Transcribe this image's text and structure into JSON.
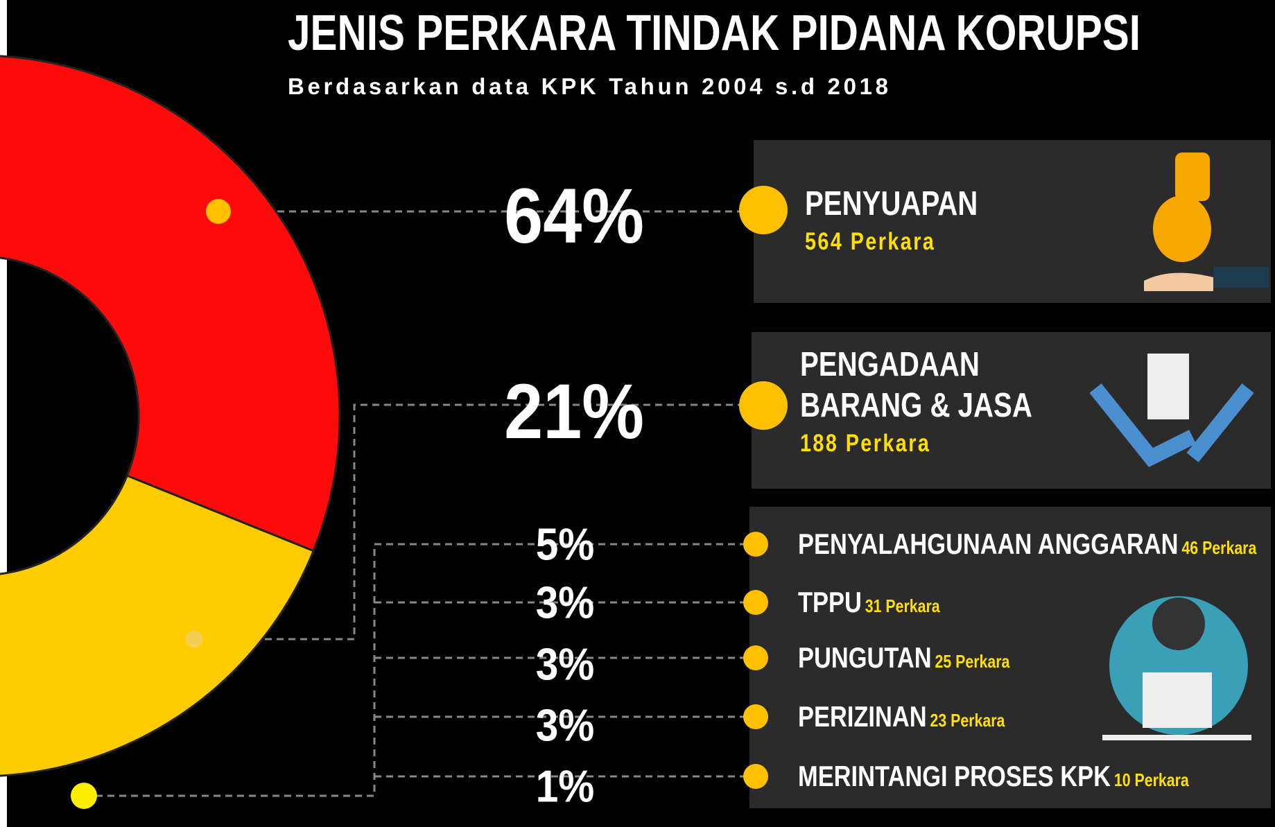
{
  "chart_data": {
    "type": "donut",
    "title": "JENIS PERKARA TINDAK PIDANA KORUPSI",
    "subtitle": "Berdasarkan data KPK Tahun 2004 s.d 2018",
    "categories": [
      "PENYUAPAN",
      "PENGADAAN BARANG & JASA",
      "PENYALAHGUNAAN ANGGARAN",
      "TPPU",
      "PUNGUTAN",
      "PERIZINAN",
      "MERINTANGI PROSES KPK"
    ],
    "values": [
      64,
      21,
      5,
      3,
      3,
      3,
      1
    ],
    "value_labels": [
      "64%",
      "21%",
      "5%",
      "3%",
      "3%",
      "3%",
      "1%"
    ],
    "case_labels": [
      "564 Perkara",
      "188 Perkara",
      "46 Perkara",
      "31 Perkara",
      "25 Perkara",
      "23 Perkara",
      "10 Perkara"
    ],
    "colors": [
      "#ff0a0a",
      "#ffcc00",
      "#6fa6dc",
      "#8dbbe8",
      "#a7cbee",
      "#7fb2e4",
      "#b9d6f2"
    ]
  }
}
